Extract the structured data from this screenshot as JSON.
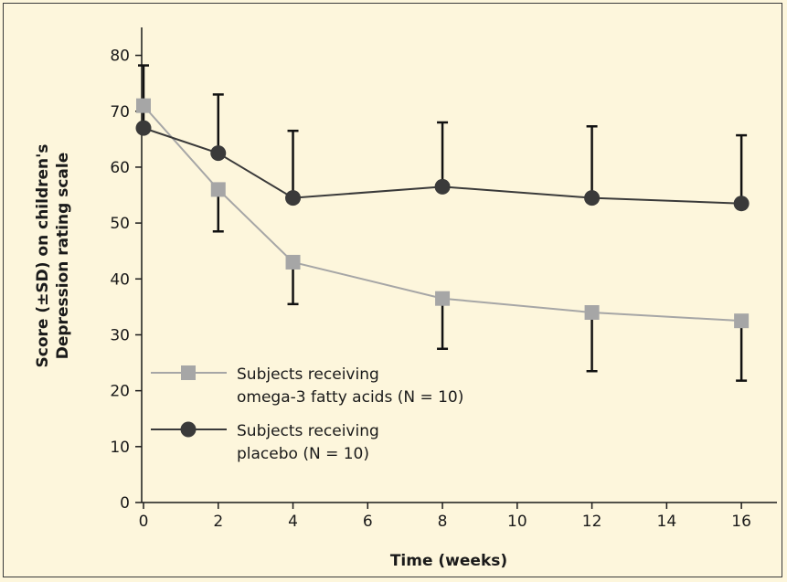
{
  "chart_data": {
    "type": "line",
    "title": "",
    "xlabel": "Time (weeks)",
    "ylabel_lines": [
      "Score (±SD) on children's",
      "Depression rating scale"
    ],
    "xlim": [
      0,
      17
    ],
    "ylim": [
      0,
      85
    ],
    "x_ticks": [
      0,
      2,
      4,
      6,
      8,
      10,
      12,
      14,
      16
    ],
    "y_ticks": [
      0,
      10,
      20,
      30,
      40,
      50,
      60,
      70,
      80
    ],
    "grid": false,
    "series": [
      {
        "name": "Subjects receiving omega-3 fatty acids (N = 10)",
        "legend_lines": [
          "Subjects receiving",
          "omega-3 fatty acids (N = 10)"
        ],
        "marker": "square",
        "color": "#a6a6a6",
        "x": [
          0,
          2,
          4,
          8,
          12,
          16
        ],
        "y": [
          71,
          56,
          43,
          36.5,
          34,
          32.5
        ],
        "error_bar_ends": [
          null,
          48.5,
          35.5,
          27.5,
          23.5,
          21.8
        ]
      },
      {
        "name": "Subjects receiving placebo (N = 10)",
        "legend_lines": [
          "Subjects receiving",
          "placebo (N = 10)"
        ],
        "marker": "circle",
        "color": "#3a3a3a",
        "x": [
          0,
          2,
          4,
          8,
          12,
          16
        ],
        "y": [
          67,
          62.5,
          54.5,
          56.5,
          54.5,
          53.5
        ],
        "error_bar_ends": [
          78.2,
          73,
          66.5,
          68,
          67.3,
          65.7
        ]
      }
    ],
    "legend_position": "lower-left"
  }
}
